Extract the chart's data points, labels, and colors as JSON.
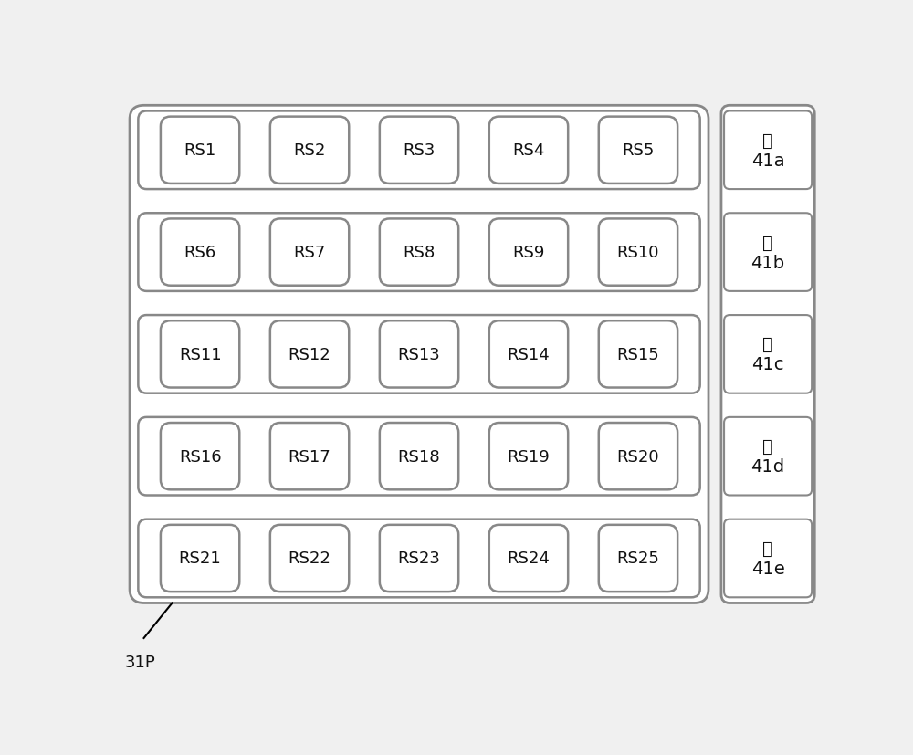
{
  "background_color": "#f0f0f0",
  "outer_box_facecolor": "white",
  "outer_box_edgecolor": "#888888",
  "row_box_facecolor": "white",
  "row_box_edgecolor": "#888888",
  "seed_box_facecolor": "white",
  "seed_box_edgecolor": "#888888",
  "label_box_facecolor": "white",
  "label_box_edgecolor": "#888888",
  "text_color": "#111111",
  "rows": [
    {
      "seeds": [
        "RS1",
        "RS2",
        "RS3",
        "RS4",
        "RS5"
      ],
      "label": "针\n41a"
    },
    {
      "seeds": [
        "RS6",
        "RS7",
        "RS8",
        "RS9",
        "RS10"
      ],
      "label": "针\n41b"
    },
    {
      "seeds": [
        "RS11",
        "RS12",
        "RS13",
        "RS14",
        "RS15"
      ],
      "label": "针\n41c"
    },
    {
      "seeds": [
        "RS16",
        "RS17",
        "RS18",
        "RS19",
        "RS20"
      ],
      "label": "针\n41d"
    },
    {
      "seeds": [
        "RS21",
        "RS22",
        "RS23",
        "RS24",
        "RS25"
      ],
      "label": "针\n41e"
    }
  ],
  "annotation_label": "31P",
  "fig_width": 10.0,
  "fig_height": 8.28,
  "dpi": 100
}
